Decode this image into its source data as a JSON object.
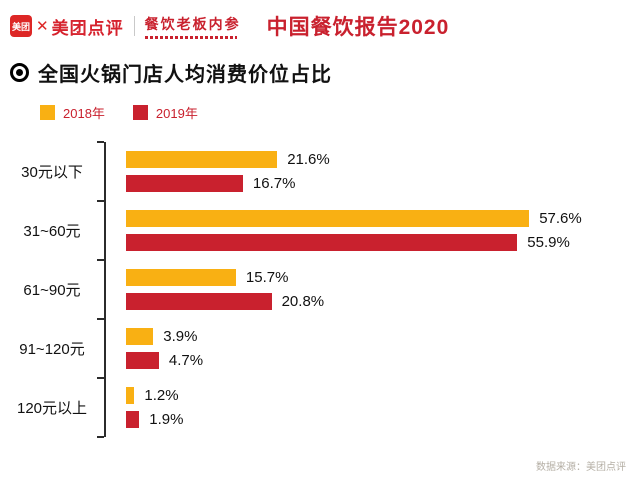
{
  "header": {
    "meituan_badge": "美团",
    "brand": "美团点评",
    "partner": "餐饮老板内参",
    "report_title": "中国餐饮报告2020"
  },
  "icons": {
    "dianping_mark": "✕",
    "section_bullet": "bullseye"
  },
  "section": {
    "title": "全国火锅门店人均消费价位占比"
  },
  "chart_data": {
    "type": "bar",
    "orientation": "horizontal",
    "title": "全国火锅门店人均消费价位占比",
    "categories": [
      "30元以下",
      "31~60元",
      "61~90元",
      "91~120元",
      "120元以上"
    ],
    "series": [
      {
        "name": "2018年",
        "color": "#F9B013",
        "values": [
          21.6,
          57.6,
          15.7,
          3.9,
          1.2
        ]
      },
      {
        "name": "2019年",
        "color": "#C9212E",
        "values": [
          16.7,
          55.9,
          20.8,
          4.7,
          1.9
        ]
      }
    ],
    "value_suffix": "%",
    "xlim": [
      0,
      60
    ],
    "legend_position": "top-left",
    "grid": false
  },
  "footer": {
    "source": "数据来源：美团点评"
  },
  "colors": {
    "brand_red": "#C9212E",
    "bar_yellow": "#F9B013",
    "bar_red": "#C9212E"
  }
}
